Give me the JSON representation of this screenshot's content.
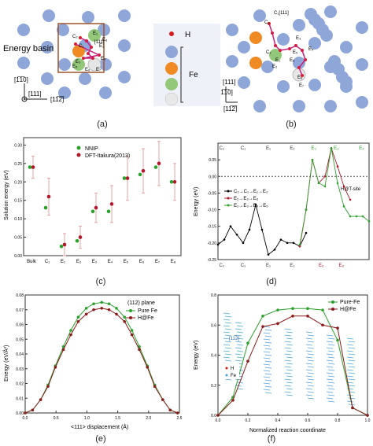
{
  "panel_a": {
    "caption": "(a)",
    "energy_basin_label": "Energy basin",
    "site_labels": [
      "C₂",
      "C₁",
      "E₁",
      "E₂",
      "E₃",
      "E₄",
      "E₅",
      "E₆",
      "E₇",
      "E₈"
    ],
    "dir_111_top": "[111]",
    "axis_dirs": [
      "[1̅1̅0]",
      "[111]",
      "[11̅2̅]"
    ]
  },
  "legend_ab": {
    "h_label": "H",
    "fe_label": "Fe",
    "fe_colors": [
      "#f08a24",
      "#93c77a",
      "#e6e6e6"
    ],
    "fe_main_color": "#8fa6d9",
    "h_color": "#d91a1a"
  },
  "panel_b": {
    "caption": "(b)",
    "site_labels": [
      "C₁",
      "C₂",
      "E₁",
      "E₂",
      "E₃",
      "E₄",
      "E₅",
      "E₆",
      "E₇",
      "E₈"
    ],
    "dir_labels": [
      "[111]",
      "[1̅1̅0]",
      "[11̅2̅]"
    ],
    "top_label": "C₁[111]"
  },
  "panel_c": {
    "caption": "(c)",
    "ylabel": "Solution energy (eV)",
    "legend": [
      "NNIP",
      "DFT-Itakura(2013)"
    ],
    "yticks": [
      "0.00",
      "0.05",
      "0.10",
      "0.15",
      "0.20",
      "0.25",
      "0.30"
    ]
  },
  "panel_d": {
    "caption": "(d)",
    "ylabel": "Energy (eV)",
    "annotation": "H@T-site",
    "top_labels": [
      "C₂",
      "C₁",
      "E₁",
      "E₂",
      "E₃",
      "E₃",
      "E₄"
    ],
    "bottom_labels": [
      "C₂",
      "C₁",
      "E₁",
      "E₂",
      "E₆",
      "E₈"
    ],
    "legend": [
      "C₂→C₁→E₁→E₂",
      "E₂→E₃→E₆",
      "E₂→E₃→E₄→E₅"
    ],
    "yticks": [
      "0.05",
      "0.00",
      "-0.05",
      "-0.10",
      "-0.15",
      "-0.20",
      "-0.25"
    ]
  },
  "panel_e": {
    "caption": "(e)",
    "ylabel": "Energy (eV/Å²)",
    "xlabel": "<111> displacement (Å)",
    "annotation": "(112) plane",
    "legend": [
      "Pure Fe",
      "H@Fe"
    ],
    "xticks": [
      "0.0",
      "0.5",
      "1.0",
      "1.5",
      "2.0",
      "2.5"
    ],
    "yticks": [
      "0.00",
      "0.01",
      "0.02",
      "0.03",
      "0.04",
      "0.05",
      "0.06",
      "0.07",
      "0.08"
    ]
  },
  "panel_f": {
    "caption": "(f)",
    "ylabel": "Energy (eV)",
    "xlabel": "Normalized reaction coordinate",
    "legend": [
      "Pure-Fe",
      "H@Fe"
    ],
    "inset_legend": [
      "H",
      "Fe"
    ],
    "inset_dir": "[11̅2]",
    "xticks": [
      "0.0",
      "0.2",
      "0.4",
      "0.6",
      "0.8",
      "1.0"
    ],
    "yticks": [
      "0.0",
      "0.2",
      "0.4",
      "0.6",
      "0.8"
    ]
  },
  "chart_data": [
    {
      "type": "scatter",
      "panel": "c",
      "ylabel": "Solution energy (eV)",
      "categories": [
        "Bulk",
        "C₁",
        "E₁",
        "E₂",
        "E₃",
        "E₄",
        "E₅",
        "E₆",
        "E₇",
        "E₈"
      ],
      "ylim": [
        0.0,
        0.32
      ],
      "series": [
        {
          "name": "NNIP",
          "color": "#2ca02c",
          "values": [
            0.24,
            0.13,
            0.025,
            0.04,
            0.12,
            0.12,
            0.21,
            0.22,
            0.24,
            0.2
          ]
        },
        {
          "name": "DFT-Itakura(2013)",
          "color": "#b2182b",
          "values": [
            0.24,
            0.16,
            0.03,
            0.05,
            0.13,
            0.14,
            0.21,
            0.23,
            0.25,
            0.2
          ],
          "err": [
            0.03,
            0.05,
            0.03,
            0.03,
            0.04,
            0.05,
            0.06,
            0.06,
            0.06,
            0.05
          ]
        }
      ]
    },
    {
      "type": "line",
      "panel": "d",
      "ylabel": "Energy (eV)",
      "xlim": [
        0,
        12
      ],
      "ylim": [
        -0.25,
        0.1
      ],
      "series": [
        {
          "name": "C₂→C₁→E₁→E₂",
          "color": "#000000",
          "x": [
            0,
            0.5,
            1,
            1.5,
            2,
            2.5,
            3,
            3.5,
            4,
            4.5,
            5,
            5.5,
            6,
            6.5,
            7
          ],
          "y": [
            -0.205,
            -0.19,
            -0.15,
            -0.175,
            -0.2,
            -0.16,
            -0.085,
            -0.16,
            -0.235,
            -0.22,
            -0.19,
            -0.2,
            -0.2,
            -0.21,
            -0.17
          ]
        },
        {
          "name": "E₂→E₃→E₆",
          "color": "#b2182b",
          "x": [
            6.5,
            7,
            7.5,
            8,
            8.5,
            9,
            9.5,
            10,
            10.5
          ],
          "y": [
            -0.21,
            -0.1,
            0.05,
            -0.02,
            0.0,
            0.085,
            0.03,
            -0.03,
            -0.07
          ]
        },
        {
          "name": "E₂→E₃→E₄→E₅",
          "color": "#2ca02c",
          "x": [
            6.5,
            7,
            7.5,
            8,
            8.5,
            9,
            9.5,
            10,
            10.5,
            11,
            11.5,
            12
          ],
          "y": [
            -0.205,
            -0.1,
            0.05,
            -0.02,
            -0.03,
            0.085,
            -0.02,
            -0.09,
            -0.12,
            -0.12,
            -0.12,
            -0.135
          ]
        }
      ]
    },
    {
      "type": "line",
      "panel": "e",
      "title": "(112) plane",
      "xlabel": "<111> displacement (Å)",
      "ylabel": "Energy (eV/Å²)",
      "xlim": [
        0,
        2.5
      ],
      "ylim": [
        0,
        0.08
      ],
      "series": [
        {
          "name": "Pure Fe",
          "color": "#2ca02c",
          "x": [
            0.0,
            0.12,
            0.25,
            0.37,
            0.49,
            0.62,
            0.74,
            0.86,
            0.99,
            1.11,
            1.24,
            1.36,
            1.48,
            1.61,
            1.73,
            1.85,
            1.98,
            2.1,
            2.23,
            2.35,
            2.47
          ],
          "y": [
            0.0,
            0.002,
            0.009,
            0.019,
            0.032,
            0.045,
            0.056,
            0.065,
            0.071,
            0.074,
            0.075,
            0.074,
            0.071,
            0.065,
            0.056,
            0.045,
            0.032,
            0.019,
            0.009,
            0.002,
            0.0
          ]
        },
        {
          "name": "H@Fe",
          "color": "#8b1a1a",
          "x": [
            0.0,
            0.12,
            0.25,
            0.37,
            0.49,
            0.62,
            0.74,
            0.86,
            0.99,
            1.11,
            1.24,
            1.36,
            1.48,
            1.61,
            1.73,
            1.85,
            1.98,
            2.1,
            2.23,
            2.35,
            2.47
          ],
          "y": [
            0.0,
            0.002,
            0.009,
            0.018,
            0.031,
            0.043,
            0.053,
            0.062,
            0.067,
            0.07,
            0.071,
            0.07,
            0.067,
            0.062,
            0.053,
            0.043,
            0.031,
            0.018,
            0.009,
            0.002,
            0.0
          ]
        }
      ]
    },
    {
      "type": "line",
      "panel": "f",
      "xlabel": "Normalized reaction coordinate",
      "ylabel": "Energy (eV)",
      "xlim": [
        0,
        1
      ],
      "ylim": [
        0,
        0.8
      ],
      "series": [
        {
          "name": "Pure-Fe",
          "color": "#2ca02c",
          "x": [
            0.0,
            0.1,
            0.2,
            0.3,
            0.4,
            0.5,
            0.6,
            0.7,
            0.8,
            0.9,
            1.0
          ],
          "y": [
            0.0,
            0.12,
            0.48,
            0.66,
            0.7,
            0.71,
            0.71,
            0.7,
            0.5,
            0.05,
            0.0
          ]
        },
        {
          "name": "H@Fe",
          "color": "#8b1a1a",
          "x": [
            0.0,
            0.1,
            0.2,
            0.3,
            0.4,
            0.5,
            0.6,
            0.7,
            0.8,
            0.9,
            1.0
          ],
          "y": [
            0.0,
            0.1,
            0.36,
            0.59,
            0.61,
            0.66,
            0.66,
            0.6,
            0.58,
            0.05,
            0.0
          ]
        }
      ]
    }
  ]
}
